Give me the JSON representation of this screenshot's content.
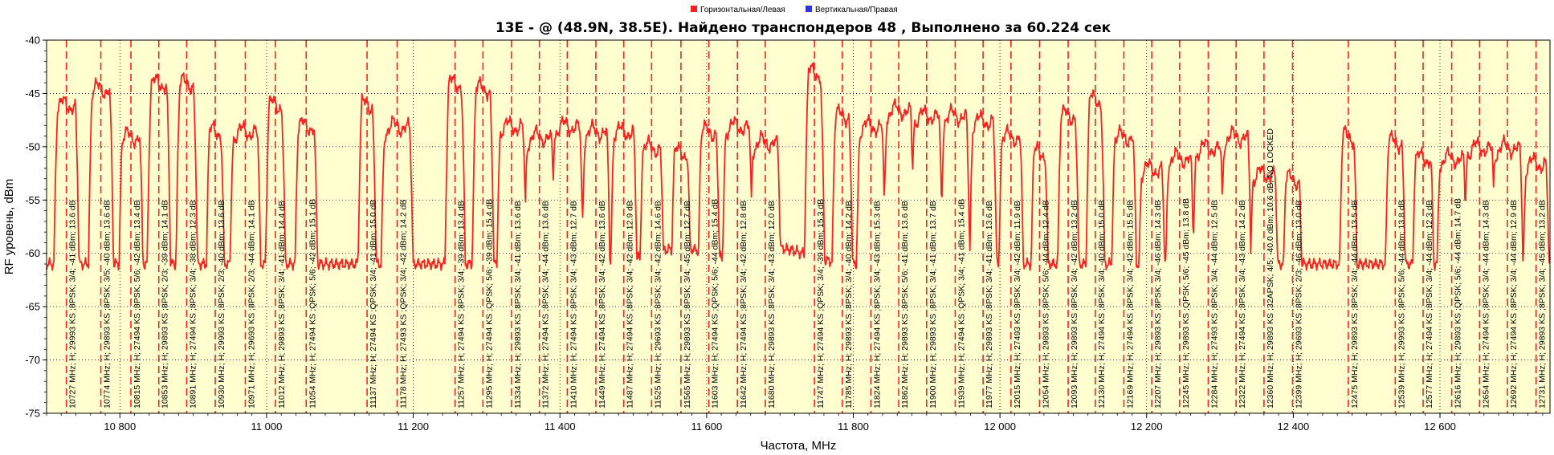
{
  "chart_data": {
    "type": "line",
    "title": "13E -  @  (48.9N, 38.5E). Найдено транспондеров 48 , Выполнено за 60.224 сек",
    "xlabel": "Частота, MHz",
    "ylabel": "RF уровень, dBm",
    "xlim": [
      10700,
      12750
    ],
    "ylim": [
      -75,
      -40
    ],
    "x_ticks": [
      10800,
      11000,
      11200,
      11400,
      11600,
      11800,
      12000,
      12200,
      12400,
      12600
    ],
    "x_tick_labels": [
      "10 800",
      "11 000",
      "11 200",
      "11 400",
      "11 600",
      "11 800",
      "12 000",
      "12 200",
      "12 400",
      "12 600"
    ],
    "y_ticks": [
      -40,
      -45,
      -50,
      -55,
      -60,
      -65,
      -70,
      -75
    ],
    "y_tick_labels": [
      "-40",
      "-45",
      "-50",
      "-55",
      "-60",
      "-65",
      "-70",
      "-75"
    ],
    "grid": true,
    "legend_position": "top-center",
    "colors": {
      "plot_background": "#ffffd0",
      "horizontal": "#ff2020",
      "vertical": "#3030ff",
      "grid": "#000000"
    },
    "legend": [
      {
        "name": "Горизонтальная/Левая",
        "color": "#ff2020"
      },
      {
        "name": "Вертикальная/Правая",
        "color": "#3030ff"
      }
    ],
    "noise_floor": [
      [
        11100,
        -63.5
      ],
      [
        11200,
        -63.5
      ],
      [
        11565,
        -61.0
      ],
      [
        11695,
        -61.0
      ],
      [
        12410,
        -65.0
      ],
      [
        12520,
        -64.5
      ]
    ],
    "transponders": [
      {
        "freq": 10727,
        "peak": -46,
        "label": "10727 MHz; H; 29993 KS ;8PSK; 3/4; -41 dBm; 13.6 dB"
      },
      {
        "freq": 10774,
        "peak": -44.5,
        "label": "10774 MHz; H; 29893 KS ;8PSK; 3/5; -40 dBm; 13.6 dB"
      },
      {
        "freq": 10815,
        "peak": -49,
        "label": "10815 MHz; H; 27494 KS ;8PSK; 5/6; -42 dBm; 13.4 dB"
      },
      {
        "freq": 10853,
        "peak": -44,
        "label": "10853 MHz; H; 29893 KS ;8PSK; 2/3; -39 dBm; 14.1 dB"
      },
      {
        "freq": 10891,
        "peak": -44,
        "label": "10891 MHz; H; 27494 KS ;8PSK; 3/4; -38 dBm; 12.3 dB"
      },
      {
        "freq": 10930,
        "peak": -48.5,
        "label": "10930 MHz; H; 29993 KS ;8PSK; 2/3; -40 dBm; 13.6 dB"
      },
      {
        "freq": 10971,
        "peak": -48.5,
        "label": "10971 MHz; H; 29693 KS ;8PSK; 2/3; -44 dBm; 14.1 dB"
      },
      {
        "freq": 11012,
        "peak": -46,
        "label": "11012 MHz; H; 29893 KS ;8PSK; 3/4; -41 dBm; 14.4 dB"
      },
      {
        "freq": 11054,
        "peak": -48,
        "label": "11054 MHz; H; 27494 KS ;QPSK; 5/6; -42 dBm; 15.1 dB"
      },
      {
        "freq": 11137,
        "peak": -46,
        "label": "11137 MHz; H; 27494 KS ;QPSK; 3/4; -41 dBm; 15.0 dB"
      },
      {
        "freq": 11178,
        "peak": -48,
        "label": "11178 MHz; H; 27493 KS ;QPSK; 3/4; -42 dBm; 14.2 dB"
      },
      {
        "freq": 11257,
        "peak": -44,
        "label": "11257 MHz; H; 27494 KS ;8PSK; 3/4; -39 dBm; 13.4 dB"
      },
      {
        "freq": 11295,
        "peak": -44.5,
        "label": "11295 MHz; H; 27494 KS ;QPSK; 5/6; -39 dBm; 15.4 dB"
      },
      {
        "freq": 11334,
        "peak": -48,
        "label": "11334 MHz; H; 29893 KS ;8PSK; 3/4; -41 dBm; 13.6 dB"
      },
      {
        "freq": 11372,
        "peak": -49,
        "label": "11372 MHz; H; 27494 KS ;8PSK; 3/4; -44 dBm; 13.6 dB"
      },
      {
        "freq": 11410,
        "peak": -48,
        "label": "11410 MHz; H; 27494 KS ;8PSK; 3/4; -43 dBm; 12.7 dB"
      },
      {
        "freq": 11449,
        "peak": -48.5,
        "label": "11449 MHz; H; 27494 KS ;8PSK; 3/4; -42 dBm; 13.6 dB"
      },
      {
        "freq": 11487,
        "peak": -48.5,
        "label": "11487 MHz; H; 27494 KS ;8PSK; 3/4; -42 dBm; 12.9 dB"
      },
      {
        "freq": 11525,
        "peak": -50,
        "label": "11525 MHz; H; 29693 KS ;8PSK; 3/4; -42 dBm; 14.6 dB"
      },
      {
        "freq": 11565,
        "peak": -50.5,
        "label": "11565 MHz; H; 29893 KS ;8PSK; 3/4; -45 dBm; 12.7 dB"
      },
      {
        "freq": 11603,
        "peak": -48.5,
        "label": "11603 MHz; H; 27494 KS ;QPSK; 5/6; -44 dBm; 15.4 dB"
      },
      {
        "freq": 11642,
        "peak": -48,
        "label": "11642 MHz; H; 27494 KS ;8PSK; 3/4; -42 dBm; 12.8 dB"
      },
      {
        "freq": 11680,
        "peak": -49.5,
        "label": "11680 MHz; H; 29893 KS ;8PSK; 3/4; -43 dBm; 12.0 dB"
      },
      {
        "freq": 11747,
        "peak": -43,
        "label": "11747 MHz; H; 27494 KS ;QPSK; 3/4; -39 dBm; 15.3 dB"
      },
      {
        "freq": 11785,
        "peak": -47,
        "label": "11785 MHz; H; 29893 KS ;8PSK; 3/4; -40 dBm; 14.2 dB"
      },
      {
        "freq": 11824,
        "peak": -48,
        "label": "11824 MHz; H; 27494 KS ;8PSK; 3/4; -43 dBm; 15.3 dB"
      },
      {
        "freq": 11862,
        "peak": -46.5,
        "label": "11862 MHz; H; 29893 KS ;8PSK; 5/6; -41 dBm; 13.6 dB"
      },
      {
        "freq": 11900,
        "peak": -47,
        "label": "11900 MHz; H; 29893 KS ;8PSK; 3/4; -41 dBm; 13.7 dB"
      },
      {
        "freq": 11939,
        "peak": -47,
        "label": "11939 MHz; H; 27494 KS ;QPSK; 3/4; -41 dBm; 15.4 dB"
      },
      {
        "freq": 11977,
        "peak": -47.5,
        "label": "11977 MHz; H; 29893 KS ;8PSK; 3/4; -41 dBm; 13.6 dB"
      },
      {
        "freq": 12015,
        "peak": -49,
        "label": "12015 MHz; H; 27493 KS ;8PSK; 3/4; -42 dBm; 11.9 dB"
      },
      {
        "freq": 12054,
        "peak": -50.5,
        "label": "12054 MHz; H; 29893 KS ;8PSK; 5/6; -44 dBm; 12.4 dB"
      },
      {
        "freq": 12093,
        "peak": -47,
        "label": "12093 MHz; H; 29893 KS ;8PSK; 3/4; -42 dBm; 13.2 dB"
      },
      {
        "freq": 12130,
        "peak": -45.5,
        "label": "12130 MHz; H; 27494 KS ;8PSK; 3/4; -40 dBm; 15.0 dB"
      },
      {
        "freq": 12169,
        "peak": -49,
        "label": "12169 MHz; H; 27494 KS ;8PSK; 3/4; -42 dBm; 15.5 dB"
      },
      {
        "freq": 12207,
        "peak": -52,
        "label": "12207 MHz; H; 29893 KS ;8PSK; 3/4; -46 dBm; 14.3 dB"
      },
      {
        "freq": 12245,
        "peak": -51,
        "label": "12245 MHz; H; 29893 KS ;QPSK; 5/6; -45 dBm; 13.8 dB"
      },
      {
        "freq": 12284,
        "peak": -50,
        "label": "12284 MHz; H; 27493 KS ;8PSK; 3/4; -44 dBm; 12.5 dB"
      },
      {
        "freq": 12322,
        "peak": -49,
        "label": "12322 MHz; H; 27494 KS ;8PSK; 3/4; -43 dBm; 14.2 dB"
      },
      {
        "freq": 12360,
        "peak": -52.5,
        "label": "12360 MHz; H; 29893 KS ;32APSK; 4/5; -40.0 dBm; 10.6 dB; NO LOCKED"
      },
      {
        "freq": 12399,
        "peak": -53,
        "label": "12399 MHz; H; 29693 KS ;8PSK; 2/3; -46 dBm; 13.0 dB"
      },
      {
        "freq": 12475,
        "peak": -49,
        "label": "12475 MHz; H; 29893 KS ;8PSK; 3/4; -44 dBm; 13.5 dB"
      },
      {
        "freq": 12539,
        "peak": -49.5,
        "label": "12539 MHz; H; 29993 KS ;8PSK; 5/6; -44 dBm; 13.8 dB"
      },
      {
        "freq": 12577,
        "peak": -51,
        "label": "12577 MHz; H; 27494 KS ;8PSK; 3/4; -44 dBm; 12.3 dB"
      },
      {
        "freq": 12616,
        "peak": -51,
        "label": "12616 MHz; H; 29893 KS ;QPSK; 5/6; -44 dBm; 14.7 dB"
      },
      {
        "freq": 12654,
        "peak": -50,
        "label": "12654 MHz; H; 27494 KS ;8PSK; 3/4; -44 dBm; 14.3 dB"
      },
      {
        "freq": 12692,
        "peak": -50,
        "label": "12692 MHz; H; 27494 KS ;8PSK; 3/4; -44 dBm; 12.9 dB"
      },
      {
        "freq": 12731,
        "peak": -51.5,
        "label": "12731 MHz; H; 29893 KS ;8PSK; 3/4; -45 dBm; 13.2 dB"
      }
    ]
  }
}
